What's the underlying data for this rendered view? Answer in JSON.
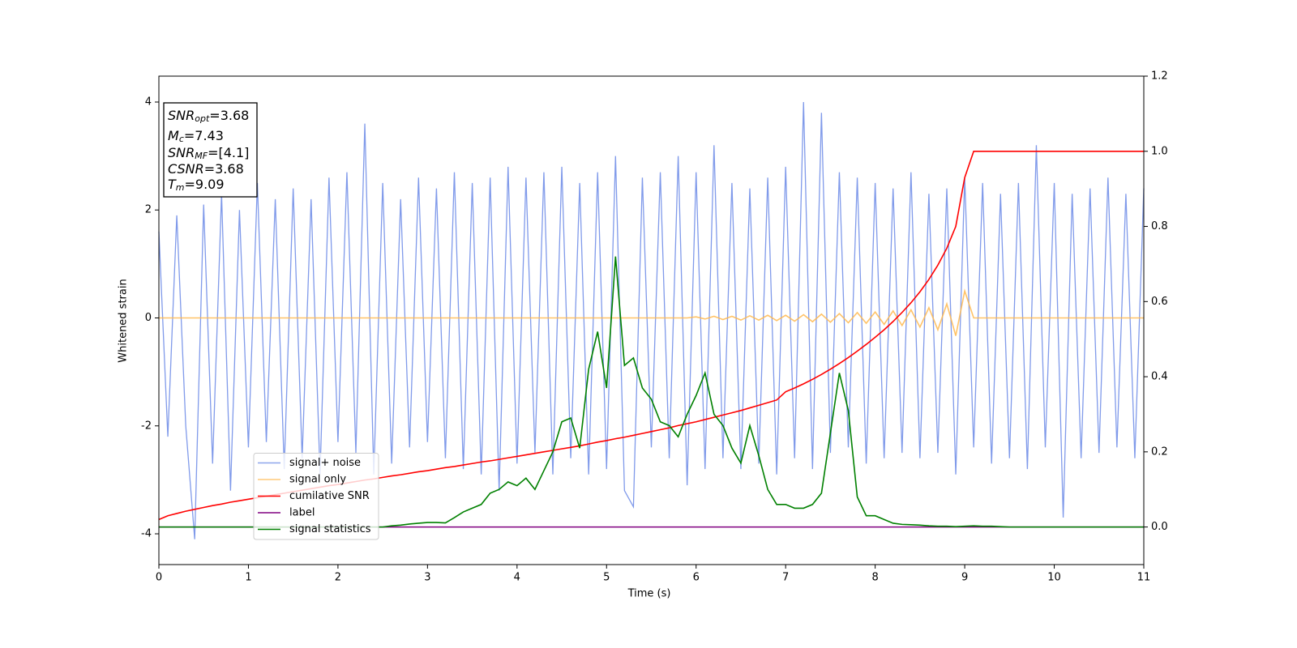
{
  "chart_data": {
    "type": "line",
    "x_label": "Time (s)",
    "y_label": "Whitened strain",
    "xlim": [
      0,
      11
    ],
    "xticks": [
      0,
      1,
      2,
      3,
      4,
      5,
      6,
      7,
      8,
      9,
      10,
      11
    ],
    "ylim": [
      -4.57,
      4.48
    ],
    "yticks": [
      -4,
      -2,
      0,
      2,
      4
    ],
    "y2lim": [
      -0.1,
      1.2
    ],
    "y2ticks": [
      {
        "value": 0,
        "label": "0.0"
      },
      {
        "value": 0.2,
        "label": "0.2"
      },
      {
        "value": 0.4,
        "label": "0.4"
      },
      {
        "value": 0.6,
        "label": "0.6"
      },
      {
        "value": 0.8,
        "label": "0.8"
      },
      {
        "value": 1.0,
        "label": "1.0"
      },
      {
        "value": 1.2,
        "label": "1.2"
      }
    ],
    "legend_loc": "lower left",
    "annotation": [
      {
        "main": "SNR",
        "sub": "opt",
        "text": "=3.68"
      },
      {
        "main": "M",
        "sub": "c",
        "text": "=7.43"
      },
      {
        "main": "SNR",
        "sub": "MF",
        "text": "=[4.1]"
      },
      {
        "main": "CSNR",
        "sub": "",
        "text": "=3.68"
      },
      {
        "main": "T",
        "sub": "m",
        "text": "=9.09"
      }
    ],
    "x": [
      0,
      0.1,
      0.2,
      0.3,
      0.4,
      0.5,
      0.6,
      0.7,
      0.8,
      0.9,
      1,
      1.1,
      1.2,
      1.3,
      1.4,
      1.5,
      1.6,
      1.7,
      1.8,
      1.9,
      2,
      2.1,
      2.2,
      2.3,
      2.4,
      2.5,
      2.6,
      2.7,
      2.8,
      2.9,
      3,
      3.1,
      3.2,
      3.3,
      3.4,
      3.5,
      3.6,
      3.7,
      3.8,
      3.9,
      4,
      4.1,
      4.2,
      4.3,
      4.4,
      4.5,
      4.6,
      4.7,
      4.8,
      4.9,
      5,
      5.1,
      5.2,
      5.3,
      5.4,
      5.5,
      5.6,
      5.7,
      5.8,
      5.9,
      6,
      6.1,
      6.2,
      6.3,
      6.4,
      6.5,
      6.6,
      6.7,
      6.8,
      6.9,
      7,
      7.1,
      7.2,
      7.3,
      7.4,
      7.5,
      7.6,
      7.7,
      7.8,
      7.9,
      8,
      8.1,
      8.2,
      8.3,
      8.4,
      8.5,
      8.6,
      8.7,
      8.8,
      8.9,
      9,
      9.1,
      9.2,
      9.3,
      9.4,
      9.5,
      9.6,
      9.7,
      9.8,
      9.9,
      10,
      10.1,
      10.2,
      10.3,
      10.4,
      10.5,
      10.6,
      10.7,
      10.8,
      10.9,
      11
    ],
    "series": [
      {
        "name": "signal+ noise",
        "color": "#6a88e6",
        "axis": "y",
        "values": [
          1.6,
          -2.2,
          1.9,
          -2.0,
          -4.1,
          2.1,
          -2.7,
          2.3,
          -3.2,
          2.0,
          -2.4,
          2.5,
          -2.3,
          2.2,
          -2.8,
          2.4,
          -2.6,
          2.2,
          -2.9,
          2.6,
          -2.3,
          2.7,
          -2.5,
          3.6,
          -2.9,
          2.5,
          -2.7,
          2.2,
          -2.4,
          2.6,
          -2.3,
          2.4,
          -2.6,
          2.7,
          -2.8,
          2.5,
          -2.9,
          2.6,
          -3.2,
          2.8,
          -2.7,
          2.6,
          -2.5,
          2.7,
          -2.9,
          2.8,
          -2.6,
          2.5,
          -2.9,
          2.7,
          -2.8,
          3.0,
          -3.2,
          -3.5,
          2.6,
          -2.4,
          2.7,
          -2.6,
          3.0,
          -3.1,
          2.7,
          -2.8,
          3.2,
          -2.6,
          2.5,
          -2.8,
          2.4,
          -2.7,
          2.6,
          -2.9,
          2.8,
          -2.6,
          4.0,
          -2.8,
          3.8,
          -2.5,
          2.7,
          -2.4,
          2.6,
          -2.7,
          2.5,
          -2.6,
          2.4,
          -2.5,
          2.7,
          -2.6,
          2.3,
          -2.5,
          2.4,
          -2.9,
          2.6,
          -2.4,
          2.5,
          -2.7,
          2.3,
          -2.6,
          2.5,
          -2.8,
          3.2,
          -2.4,
          2.5,
          -3.7,
          2.3,
          -2.6,
          2.4,
          -2.5,
          2.6,
          -2.4,
          2.3,
          -2.6,
          2.4
        ]
      },
      {
        "name": "signal only",
        "color": "#ffb84d",
        "axis": "y",
        "values": [
          0,
          0,
          0,
          0,
          0,
          0,
          0,
          0,
          0,
          0,
          0,
          0,
          0,
          0,
          0,
          0,
          0,
          0,
          0,
          0,
          0,
          0,
          0,
          0,
          0,
          0,
          0,
          0,
          0,
          0,
          0,
          0,
          0,
          0,
          0,
          0,
          0,
          0,
          0,
          0,
          0,
          0,
          0,
          0,
          0,
          0,
          0,
          0,
          0,
          0,
          0,
          0,
          0,
          0,
          0,
          0,
          0,
          0,
          0,
          0,
          0.02,
          -0.02,
          0.03,
          -0.03,
          0.03,
          -0.04,
          0.04,
          -0.04,
          0.05,
          -0.05,
          0.05,
          -0.06,
          0.06,
          -0.07,
          0.07,
          -0.08,
          0.08,
          -0.09,
          0.1,
          -0.1,
          0.11,
          -0.12,
          0.13,
          -0.14,
          0.15,
          -0.17,
          0.19,
          -0.22,
          0.26,
          -0.33,
          0.5,
          0,
          0,
          0,
          0,
          0,
          0,
          0,
          0,
          0,
          0,
          0,
          0,
          0,
          0,
          0,
          0,
          0,
          0,
          0,
          0
        ]
      },
      {
        "name": "cumilative SNR",
        "color": "#ff0000",
        "axis": "y2",
        "values": [
          0.02,
          0.03,
          0.036,
          0.042,
          0.047,
          0.052,
          0.057,
          0.061,
          0.066,
          0.07,
          0.074,
          0.078,
          0.082,
          0.086,
          0.09,
          0.094,
          0.098,
          0.102,
          0.106,
          0.11,
          0.113,
          0.117,
          0.121,
          0.125,
          0.128,
          0.132,
          0.136,
          0.139,
          0.143,
          0.147,
          0.15,
          0.154,
          0.158,
          0.161,
          0.165,
          0.169,
          0.173,
          0.176,
          0.18,
          0.184,
          0.188,
          0.192,
          0.196,
          0.2,
          0.204,
          0.208,
          0.212,
          0.216,
          0.221,
          0.226,
          0.23,
          0.235,
          0.239,
          0.244,
          0.249,
          0.254,
          0.259,
          0.264,
          0.27,
          0.275,
          0.28,
          0.286,
          0.292,
          0.298,
          0.304,
          0.31,
          0.317,
          0.324,
          0.331,
          0.338,
          0.36,
          0.37,
          0.381,
          0.393,
          0.406,
          0.42,
          0.435,
          0.451,
          0.468,
          0.486,
          0.505,
          0.525,
          0.547,
          0.571,
          0.597,
          0.626,
          0.659,
          0.697,
          0.742,
          0.8,
          0.93,
          1,
          1,
          1,
          1,
          1,
          1,
          1,
          1,
          1,
          1,
          1,
          1,
          1,
          1,
          1,
          1,
          1,
          1,
          1,
          1
        ]
      },
      {
        "name": "label",
        "color": "#800080",
        "axis": "y2",
        "values": [
          0,
          0,
          0,
          0,
          0,
          0,
          0,
          0,
          0,
          0,
          0,
          0,
          0,
          0,
          0,
          0,
          0,
          0,
          0,
          0,
          0,
          0,
          0,
          0,
          0,
          0,
          0,
          0,
          0,
          0,
          0,
          0,
          0,
          0,
          0,
          0,
          0,
          0,
          0,
          0,
          0,
          0,
          0,
          0,
          0,
          0,
          0,
          0,
          0,
          0,
          0,
          0,
          0,
          0,
          0,
          0,
          0,
          0,
          0,
          0,
          0,
          0,
          0,
          0,
          0,
          0,
          0,
          0,
          0,
          0,
          0,
          0,
          0,
          0,
          0,
          0,
          0,
          0,
          0,
          0,
          0,
          0,
          0,
          0,
          0,
          0,
          0,
          0,
          0,
          0,
          0,
          0,
          0,
          0,
          0,
          0,
          0,
          0,
          0,
          0,
          0,
          0,
          0,
          0,
          0,
          0,
          0,
          0,
          0,
          0,
          0
        ]
      },
      {
        "name": "signal statistics",
        "color": "#008000",
        "axis": "y2",
        "values": [
          0,
          0,
          0,
          0,
          0,
          0,
          0,
          0,
          0,
          0,
          0,
          0,
          0,
          0,
          0,
          0,
          0,
          0,
          0,
          0,
          0,
          0,
          0,
          0,
          0,
          0,
          0.003,
          0.005,
          0.008,
          0.01,
          0.012,
          0.012,
          0.011,
          0.025,
          0.04,
          0.05,
          0.06,
          0.09,
          0.1,
          0.12,
          0.11,
          0.13,
          0.1,
          0.15,
          0.2,
          0.28,
          0.29,
          0.21,
          0.42,
          0.52,
          0.37,
          0.72,
          0.43,
          0.45,
          0.37,
          0.34,
          0.28,
          0.27,
          0.24,
          0.3,
          0.35,
          0.41,
          0.3,
          0.27,
          0.21,
          0.17,
          0.27,
          0.19,
          0.1,
          0.06,
          0.06,
          0.05,
          0.05,
          0.06,
          0.09,
          0.25,
          0.41,
          0.31,
          0.08,
          0.03,
          0.03,
          0.02,
          0.01,
          0.007,
          0.006,
          0.005,
          0.003,
          0.002,
          0.002,
          0.001,
          0.002,
          0.003,
          0.002,
          0.002,
          0.001,
          0,
          0,
          0,
          0,
          0,
          0,
          0,
          0,
          0,
          0,
          0,
          0,
          0,
          0,
          0,
          0
        ]
      }
    ]
  }
}
